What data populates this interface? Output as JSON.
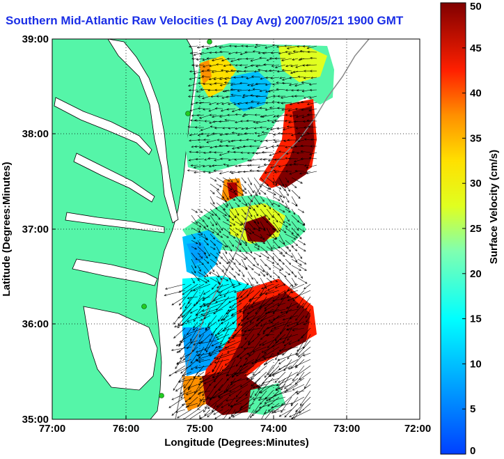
{
  "title": "Southern Mid-Atlantic Raw Velocities (1 Day Avg) 2007/05/21 1900 GMT",
  "map": {
    "xlabel": "Longitude (Degrees:Minutes)",
    "ylabel": "Latitude (Degrees:Minutes)",
    "x_ticks": [
      "77:00",
      "76:00",
      "75:00",
      "74:00",
      "73:00",
      "72:00"
    ],
    "y_ticks": [
      "35:00",
      "36:00",
      "37:00",
      "38:00",
      "39:00"
    ],
    "lon_range": [
      -77,
      -72
    ],
    "lat_range": [
      35,
      39
    ],
    "grid": "dotted",
    "land_color": "#55f5a8",
    "arrow_color": "#000000",
    "station_color": "#22cc22"
  },
  "colorbar": {
    "label": "Surface Velocity (cm/s)",
    "ticks": [
      "0",
      "5",
      "10",
      "15",
      "20",
      "25",
      "30",
      "35",
      "40",
      "45",
      "50"
    ],
    "range": [
      0,
      50
    ],
    "colormap": "jet"
  }
}
